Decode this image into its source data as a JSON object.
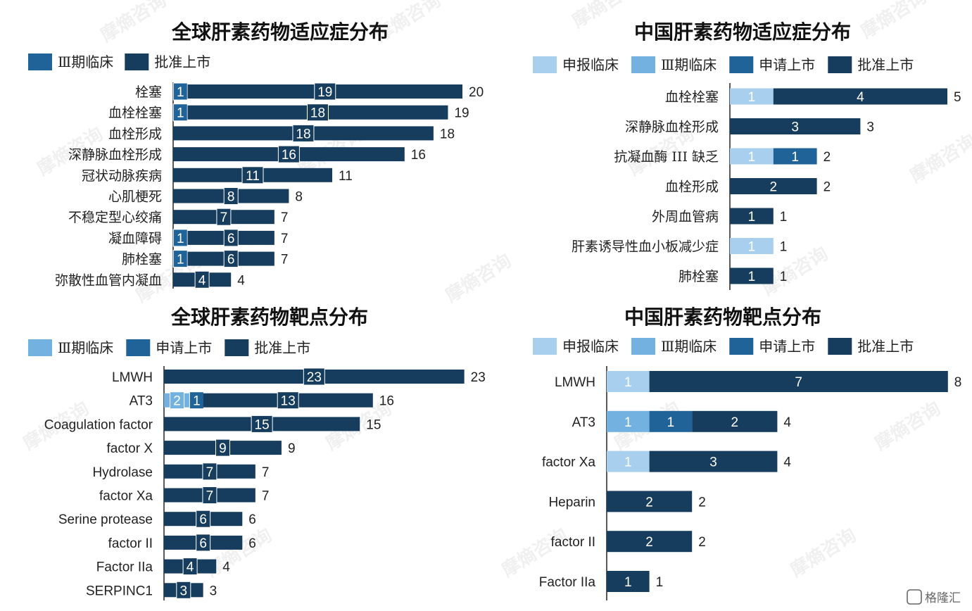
{
  "colors": {
    "申报临床": "#a8cfee",
    "Ⅲ期临床": "#72b1e0",
    "申请上市": "#1f6399",
    "批准上市": "#163d5e",
    "Ⅲ期临床_global": "#1f6399"
  },
  "watermark": {
    "text": "摩熵咨询",
    "footer": "格隆汇"
  },
  "chart_data": [
    {
      "id": "global-indication",
      "type": "bar",
      "orientation": "horizontal",
      "stacked": true,
      "title": "全球肝素药物适应症分布",
      "legend": [
        {
          "name": "Ⅲ期临床",
          "color": "#1f6399"
        },
        {
          "name": "批准上市",
          "color": "#163d5e"
        }
      ],
      "legend_position": "top-left",
      "categories": [
        "栓塞",
        "血栓栓塞",
        "血栓形成",
        "深静脉血栓形成",
        "冠状动脉疾病",
        "心肌梗死",
        "不稳定型心绞痛",
        "凝血障碍",
        "肺栓塞",
        "弥散性血管内凝血"
      ],
      "series": [
        {
          "name": "Ⅲ期临床",
          "color": "#1f6399",
          "values": [
            1,
            1,
            0,
            0,
            0,
            0,
            0,
            1,
            1,
            0
          ]
        },
        {
          "name": "批准上市",
          "color": "#163d5e",
          "values": [
            19,
            18,
            18,
            16,
            11,
            8,
            7,
            6,
            6,
            4
          ]
        }
      ],
      "totals": [
        20,
        19,
        18,
        16,
        11,
        8,
        7,
        7,
        7,
        4
      ],
      "xlim": [
        0,
        20
      ]
    },
    {
      "id": "china-indication",
      "type": "bar",
      "orientation": "horizontal",
      "stacked": true,
      "title": "中国肝素药物适应症分布",
      "legend": [
        {
          "name": "申报临床",
          "color": "#a8cfee"
        },
        {
          "name": "Ⅲ期临床",
          "color": "#72b1e0"
        },
        {
          "name": "申请上市",
          "color": "#1f6399"
        },
        {
          "name": "批准上市",
          "color": "#163d5e"
        }
      ],
      "legend_position": "top",
      "categories": [
        "血栓栓塞",
        "深静脉血栓形成",
        "抗凝血酶 III 缺乏",
        "血栓形成",
        "外周血管病",
        "肝素诱导性血小板减少症",
        "肺栓塞"
      ],
      "series": [
        {
          "name": "申报临床",
          "color": "#a8cfee",
          "values": [
            1,
            0,
            1,
            0,
            0,
            1,
            0
          ]
        },
        {
          "name": "Ⅲ期临床",
          "color": "#72b1e0",
          "values": [
            0,
            0,
            0,
            0,
            0,
            0,
            0
          ]
        },
        {
          "name": "申请上市",
          "color": "#1f6399",
          "values": [
            0,
            0,
            1,
            0,
            0,
            0,
            0
          ]
        },
        {
          "name": "批准上市",
          "color": "#163d5e",
          "values": [
            4,
            3,
            0,
            2,
            1,
            0,
            1
          ]
        }
      ],
      "totals": [
        5,
        3,
        2,
        2,
        1,
        1,
        1
      ],
      "xlim": [
        0,
        5
      ]
    },
    {
      "id": "global-target",
      "type": "bar",
      "orientation": "horizontal",
      "stacked": true,
      "title": "全球肝素药物靶点分布",
      "legend": [
        {
          "name": "Ⅲ期临床",
          "color": "#72b1e0"
        },
        {
          "name": "申请上市",
          "color": "#1f6399"
        },
        {
          "name": "批准上市",
          "color": "#163d5e"
        }
      ],
      "legend_position": "top-left",
      "categories": [
        "LMWH",
        "AT3",
        "Coagulation factor",
        "factor X",
        "Hydrolase",
        "factor Xa",
        "Serine protease",
        "factor II",
        "Factor IIa",
        "SERPINC1"
      ],
      "series": [
        {
          "name": "Ⅲ期临床",
          "color": "#72b1e0",
          "values": [
            0,
            2,
            0,
            0,
            0,
            0,
            0,
            0,
            0,
            0
          ]
        },
        {
          "name": "申请上市",
          "color": "#1f6399",
          "values": [
            0,
            1,
            0,
            0,
            0,
            0,
            0,
            0,
            0,
            0
          ]
        },
        {
          "name": "批准上市",
          "color": "#163d5e",
          "values": [
            23,
            13,
            15,
            9,
            7,
            7,
            6,
            6,
            4,
            3
          ]
        }
      ],
      "totals": [
        23,
        16,
        15,
        9,
        7,
        7,
        6,
        6,
        4,
        3
      ],
      "xlim": [
        0,
        23
      ]
    },
    {
      "id": "china-target",
      "type": "bar",
      "orientation": "horizontal",
      "stacked": true,
      "title": "中国肝素药物靶点分布",
      "legend": [
        {
          "name": "申报临床",
          "color": "#a8cfee"
        },
        {
          "name": "Ⅲ期临床",
          "color": "#72b1e0"
        },
        {
          "name": "申请上市",
          "color": "#1f6399"
        },
        {
          "name": "批准上市",
          "color": "#163d5e"
        }
      ],
      "legend_position": "top",
      "categories": [
        "LMWH",
        "AT3",
        "factor Xa",
        "Heparin",
        "factor II",
        "Factor IIa"
      ],
      "series": [
        {
          "name": "申报临床",
          "color": "#a8cfee",
          "values": [
            1,
            0,
            1,
            0,
            0,
            0
          ]
        },
        {
          "name": "Ⅲ期临床",
          "color": "#72b1e0",
          "values": [
            0,
            1,
            0,
            0,
            0,
            0
          ]
        },
        {
          "name": "申请上市",
          "color": "#1f6399",
          "values": [
            0,
            1,
            0,
            0,
            0,
            0
          ]
        },
        {
          "name": "批准上市",
          "color": "#163d5e",
          "values": [
            7,
            2,
            3,
            2,
            2,
            1
          ]
        }
      ],
      "totals": [
        8,
        4,
        4,
        2,
        2,
        1
      ],
      "xlim": [
        0,
        8
      ]
    }
  ]
}
